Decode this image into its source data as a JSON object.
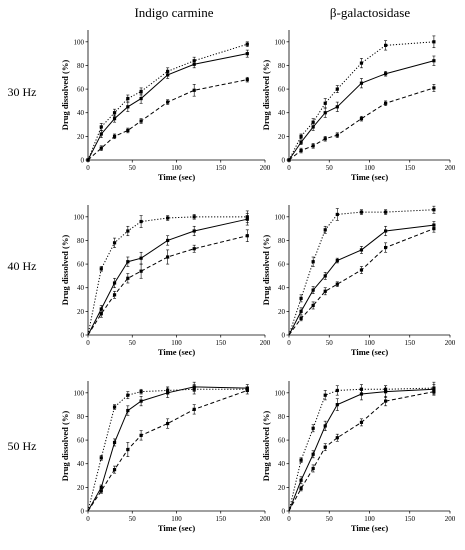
{
  "column_titles": [
    "Indigo carmine",
    "β-galactosidase"
  ],
  "row_labels": [
    "30 Hz",
    "40 Hz",
    "50 Hz"
  ],
  "chart_data": [
    {
      "type": "scatter",
      "title": "",
      "xlabel": "Time (sec)",
      "ylabel": "Drug dissolved (%)",
      "xlim": [
        0,
        200
      ],
      "ylim": [
        0,
        110
      ],
      "xticks": [
        0,
        50,
        100,
        150,
        200
      ],
      "yticks": [
        0,
        20,
        40,
        60,
        80,
        100
      ],
      "grid": false,
      "series": [
        {
          "style": "dotted",
          "x": [
            0,
            15,
            30,
            45,
            60,
            90,
            120,
            180
          ],
          "y": [
            0,
            28,
            40,
            52,
            58,
            75,
            84,
            98
          ],
          "err": [
            0,
            3,
            3,
            3,
            3,
            3,
            3,
            2
          ]
        },
        {
          "style": "solid",
          "x": [
            0,
            15,
            30,
            45,
            60,
            90,
            120,
            180
          ],
          "y": [
            0,
            22,
            35,
            45,
            52,
            72,
            81,
            90
          ],
          "err": [
            0,
            3,
            3,
            4,
            4,
            3,
            3,
            3
          ]
        },
        {
          "style": "dashed",
          "x": [
            0,
            15,
            30,
            45,
            60,
            90,
            120,
            180
          ],
          "y": [
            0,
            10,
            20,
            25,
            33,
            49,
            59,
            68
          ],
          "err": [
            0,
            2,
            2,
            2,
            2,
            2,
            5,
            2
          ]
        }
      ]
    },
    {
      "type": "scatter",
      "title": "",
      "xlabel": "Time (sec)",
      "ylabel": "Drug dissolved (%)",
      "xlim": [
        0,
        200
      ],
      "ylim": [
        0,
        110
      ],
      "xticks": [
        0,
        50,
        100,
        150,
        200
      ],
      "yticks": [
        0,
        20,
        40,
        60,
        80,
        100
      ],
      "grid": false,
      "series": [
        {
          "style": "dotted",
          "x": [
            0,
            15,
            30,
            45,
            60,
            90,
            120,
            180
          ],
          "y": [
            0,
            20,
            32,
            48,
            60,
            82,
            97,
            100
          ],
          "err": [
            0,
            2,
            3,
            4,
            3,
            4,
            4,
            5
          ]
        },
        {
          "style": "solid",
          "x": [
            0,
            15,
            30,
            45,
            60,
            90,
            120,
            180
          ],
          "y": [
            0,
            15,
            28,
            40,
            45,
            65,
            73,
            84
          ],
          "err": [
            0,
            2,
            3,
            4,
            4,
            4,
            2,
            4
          ]
        },
        {
          "style": "dashed",
          "x": [
            0,
            15,
            30,
            45,
            60,
            90,
            120,
            180
          ],
          "y": [
            0,
            8,
            12,
            18,
            21,
            35,
            48,
            61
          ],
          "err": [
            0,
            2,
            2,
            2,
            2,
            2,
            2,
            3
          ]
        }
      ]
    },
    {
      "type": "scatter",
      "title": "",
      "xlabel": "Time (sec)",
      "ylabel": "Drug dissolved (%)",
      "xlim": [
        0,
        200
      ],
      "ylim": [
        0,
        110
      ],
      "xticks": [
        0,
        50,
        100,
        150,
        200
      ],
      "yticks": [
        0,
        20,
        40,
        60,
        80,
        100
      ],
      "grid": false,
      "series": [
        {
          "style": "dotted",
          "x": [
            15,
            30,
            45,
            60,
            90,
            120,
            180
          ],
          "y": [
            56,
            78,
            88,
            96,
            99,
            100,
            100
          ],
          "err": [
            2,
            4,
            4,
            5,
            2,
            2,
            5
          ]
        },
        {
          "style": "solid",
          "x": [
            15,
            30,
            45,
            60,
            90,
            120,
            180
          ],
          "y": [
            22,
            44,
            62,
            65,
            80,
            88,
            98
          ],
          "err": [
            3,
            4,
            4,
            5,
            4,
            4,
            5
          ]
        },
        {
          "style": "dashed",
          "x": [
            15,
            30,
            45,
            60,
            90,
            120,
            180
          ],
          "y": [
            18,
            34,
            48,
            54,
            66,
            73,
            84
          ],
          "err": [
            3,
            3,
            4,
            6,
            6,
            3,
            5
          ]
        }
      ]
    },
    {
      "type": "scatter",
      "title": "",
      "xlabel": "Time (sec)",
      "ylabel": "Drug dissolved (%)",
      "xlim": [
        0,
        200
      ],
      "ylim": [
        0,
        110
      ],
      "xticks": [
        0,
        50,
        100,
        150,
        200
      ],
      "yticks": [
        0,
        20,
        40,
        60,
        80,
        100
      ],
      "grid": false,
      "series": [
        {
          "style": "dotted",
          "x": [
            15,
            30,
            45,
            60,
            90,
            120,
            180
          ],
          "y": [
            31,
            62,
            89,
            102,
            104,
            104,
            106
          ],
          "err": [
            3,
            4,
            3,
            5,
            2,
            2,
            3
          ]
        },
        {
          "style": "solid",
          "x": [
            15,
            30,
            45,
            60,
            90,
            120,
            180
          ],
          "y": [
            20,
            38,
            50,
            63,
            72,
            88,
            93
          ],
          "err": [
            3,
            3,
            3,
            2,
            3,
            4,
            3
          ]
        },
        {
          "style": "dashed",
          "x": [
            15,
            30,
            45,
            60,
            90,
            120,
            180
          ],
          "y": [
            14,
            25,
            37,
            43,
            55,
            74,
            90
          ],
          "err": [
            2,
            3,
            3,
            2,
            3,
            4,
            3
          ]
        }
      ]
    },
    {
      "type": "scatter",
      "title": "",
      "xlabel": "Time (sec)",
      "ylabel": "Drug dissolved (%)",
      "xlim": [
        0,
        200
      ],
      "ylim": [
        0,
        110
      ],
      "xticks": [
        0,
        50,
        100,
        150,
        200
      ],
      "yticks": [
        0,
        20,
        40,
        60,
        80,
        100
      ],
      "grid": false,
      "series": [
        {
          "style": "dotted",
          "x": [
            15,
            30,
            45,
            60,
            90,
            120,
            180
          ],
          "y": [
            45,
            88,
            98,
            101,
            102,
            103,
            103
          ],
          "err": [
            2,
            2,
            3,
            2,
            3,
            4,
            2
          ]
        },
        {
          "style": "solid",
          "x": [
            15,
            30,
            45,
            60,
            90,
            120,
            180
          ],
          "y": [
            20,
            58,
            85,
            93,
            100,
            105,
            104
          ],
          "err": [
            2,
            3,
            4,
            4,
            4,
            4,
            3
          ]
        },
        {
          "style": "dashed",
          "x": [
            15,
            30,
            45,
            60,
            90,
            120,
            180
          ],
          "y": [
            17,
            35,
            52,
            64,
            74,
            86,
            102
          ],
          "err": [
            2,
            3,
            6,
            4,
            4,
            4,
            3
          ]
        }
      ]
    },
    {
      "type": "scatter",
      "title": "",
      "xlabel": "Time (sec)",
      "ylabel": "Drug dissolved (%)",
      "xlim": [
        0,
        200
      ],
      "ylim": [
        0,
        110
      ],
      "xticks": [
        0,
        50,
        100,
        150,
        200
      ],
      "yticks": [
        0,
        20,
        40,
        60,
        80,
        100
      ],
      "grid": false,
      "series": [
        {
          "style": "dotted",
          "x": [
            15,
            30,
            45,
            60,
            90,
            120,
            180
          ],
          "y": [
            43,
            70,
            98,
            102,
            103,
            103,
            104
          ],
          "err": [
            2,
            3,
            4,
            4,
            4,
            3,
            5
          ]
        },
        {
          "style": "solid",
          "x": [
            15,
            30,
            45,
            60,
            90,
            120,
            180
          ],
          "y": [
            26,
            48,
            72,
            90,
            99,
            101,
            103
          ],
          "err": [
            3,
            3,
            4,
            5,
            5,
            5,
            4
          ]
        },
        {
          "style": "dashed",
          "x": [
            15,
            30,
            45,
            60,
            90,
            120,
            180
          ],
          "y": [
            19,
            36,
            54,
            62,
            75,
            93,
            101
          ],
          "err": [
            2,
            3,
            3,
            3,
            3,
            4,
            3
          ]
        }
      ]
    }
  ]
}
